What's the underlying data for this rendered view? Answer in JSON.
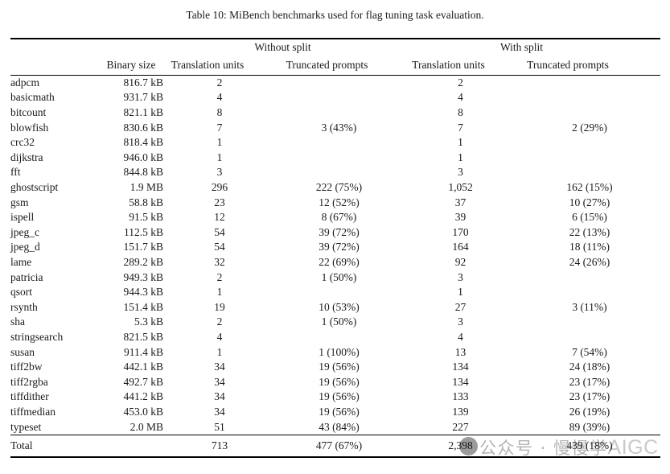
{
  "caption": "Table 10: MiBench benchmarks used for flag tuning task evaluation.",
  "table": {
    "group_headers": {
      "without_split": "Without split",
      "with_split": "With split"
    },
    "column_headers": {
      "binary_size": "Binary size",
      "translation_units_without": "Translation units",
      "truncated_prompts_without": "Truncated prompts",
      "translation_units_with": "Translation units",
      "truncated_prompts_with": "Truncated prompts"
    },
    "rows": [
      {
        "name": "adpcm",
        "size": "816.7 kB",
        "tu_without": "2",
        "tp_without": "",
        "tu_with": "2",
        "tp_with": ""
      },
      {
        "name": "basicmath",
        "size": "931.7 kB",
        "tu_without": "4",
        "tp_without": "",
        "tu_with": "4",
        "tp_with": ""
      },
      {
        "name": "bitcount",
        "size": "821.1 kB",
        "tu_without": "8",
        "tp_without": "",
        "tu_with": "8",
        "tp_with": ""
      },
      {
        "name": "blowfish",
        "size": "830.6 kB",
        "tu_without": "7",
        "tp_without": "3 (43%)",
        "tu_with": "7",
        "tp_with": "2 (29%)"
      },
      {
        "name": "crc32",
        "size": "818.4 kB",
        "tu_without": "1",
        "tp_without": "",
        "tu_with": "1",
        "tp_with": ""
      },
      {
        "name": "dijkstra",
        "size": "946.0 kB",
        "tu_without": "1",
        "tp_without": "",
        "tu_with": "1",
        "tp_with": ""
      },
      {
        "name": "fft",
        "size": "844.8 kB",
        "tu_without": "3",
        "tp_without": "",
        "tu_with": "3",
        "tp_with": ""
      },
      {
        "name": "ghostscript",
        "size": "1.9 MB",
        "tu_without": "296",
        "tp_without": "222 (75%)",
        "tu_with": "1,052",
        "tp_with": "162 (15%)"
      },
      {
        "name": "gsm",
        "size": "58.8 kB",
        "tu_without": "23",
        "tp_without": "12 (52%)",
        "tu_with": "37",
        "tp_with": "10 (27%)"
      },
      {
        "name": "ispell",
        "size": "91.5 kB",
        "tu_without": "12",
        "tp_without": "8 (67%)",
        "tu_with": "39",
        "tp_with": "6 (15%)"
      },
      {
        "name": "jpeg_c",
        "size": "112.5 kB",
        "tu_without": "54",
        "tp_without": "39 (72%)",
        "tu_with": "170",
        "tp_with": "22 (13%)"
      },
      {
        "name": "jpeg_d",
        "size": "151.7 kB",
        "tu_without": "54",
        "tp_without": "39 (72%)",
        "tu_with": "164",
        "tp_with": "18 (11%)"
      },
      {
        "name": "lame",
        "size": "289.2 kB",
        "tu_without": "32",
        "tp_without": "22 (69%)",
        "tu_with": "92",
        "tp_with": "24 (26%)"
      },
      {
        "name": "patricia",
        "size": "949.3 kB",
        "tu_without": "2",
        "tp_without": "1 (50%)",
        "tu_with": "3",
        "tp_with": ""
      },
      {
        "name": "qsort",
        "size": "944.3 kB",
        "tu_without": "1",
        "tp_without": "",
        "tu_with": "1",
        "tp_with": ""
      },
      {
        "name": "rsynth",
        "size": "151.4 kB",
        "tu_without": "19",
        "tp_without": "10 (53%)",
        "tu_with": "27",
        "tp_with": "3 (11%)"
      },
      {
        "name": "sha",
        "size": "5.3 kB",
        "tu_without": "2",
        "tp_without": "1 (50%)",
        "tu_with": "3",
        "tp_with": ""
      },
      {
        "name": "stringsearch",
        "size": "821.5 kB",
        "tu_without": "4",
        "tp_without": "",
        "tu_with": "4",
        "tp_with": ""
      },
      {
        "name": "susan",
        "size": "911.4 kB",
        "tu_without": "1",
        "tp_without": "1 (100%)",
        "tu_with": "13",
        "tp_with": "7 (54%)"
      },
      {
        "name": "tiff2bw",
        "size": "442.1 kB",
        "tu_without": "34",
        "tp_without": "19 (56%)",
        "tu_with": "134",
        "tp_with": "24 (18%)"
      },
      {
        "name": "tiff2rgba",
        "size": "492.7 kB",
        "tu_without": "34",
        "tp_without": "19 (56%)",
        "tu_with": "134",
        "tp_with": "23 (17%)"
      },
      {
        "name": "tiffdither",
        "size": "441.2 kB",
        "tu_without": "34",
        "tp_without": "19 (56%)",
        "tu_with": "133",
        "tp_with": "23 (17%)"
      },
      {
        "name": "tiffmedian",
        "size": "453.0 kB",
        "tu_without": "34",
        "tp_without": "19 (56%)",
        "tu_with": "139",
        "tp_with": "26 (19%)"
      },
      {
        "name": "typeset",
        "size": "2.0 MB",
        "tu_without": "51",
        "tp_without": "43 (84%)",
        "tu_with": "227",
        "tp_with": "89 (39%)"
      }
    ],
    "total": {
      "label": "Total",
      "size": "",
      "tu_without": "713",
      "tp_without": "477 (67%)",
      "tu_with": "2,398",
      "tp_with": "439 (18%)"
    }
  },
  "watermark": {
    "cjk_text": "公众号 · 慢慢学",
    "latin_text": "AIGC",
    "text_color": "#b4b4b4",
    "latin_color": "#c9c9c9",
    "circle_color": "#9b9b9b"
  },
  "colors": {
    "background": "#ffffff",
    "text": "#1a1a1a",
    "rule": "#000000"
  }
}
